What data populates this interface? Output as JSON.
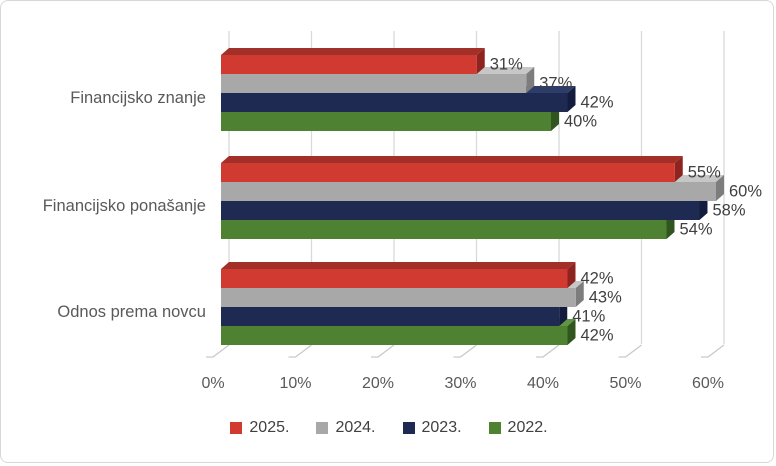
{
  "window": {
    "background": "#FFFFFF",
    "border_color": "#D8D8D8"
  },
  "chart_data": {
    "type": "bar",
    "orientation": "horizontal",
    "style": "3d-clustered",
    "title": "",
    "xlabel": "",
    "ylabel": "",
    "categories": [
      "Financijsko znanje",
      "Financijsko ponašanje",
      "Odnos prema novcu"
    ],
    "series": [
      {
        "name": "2025.",
        "color": "#D03A30",
        "color_top": "#A33028",
        "color_side": "#8E2420",
        "values": [
          31,
          55,
          42
        ]
      },
      {
        "name": "2024.",
        "color": "#A8A8A8",
        "color_top": "#C7C7C7",
        "color_side": "#7D7D7D",
        "values": [
          37,
          60,
          43
        ]
      },
      {
        "name": "2023.",
        "color": "#1F2A52",
        "color_top": "#2E3C69",
        "color_side": "#141C3D",
        "values": [
          42,
          58,
          41
        ]
      },
      {
        "name": "2022.",
        "color": "#4F8132",
        "color_top": "#609544",
        "color_side": "#31551E",
        "values": [
          40,
          54,
          42
        ]
      }
    ],
    "data_label_suffix": "%",
    "data_labels": [
      [
        "31%",
        "55%",
        "42%"
      ],
      [
        "37%",
        "60%",
        "43%"
      ],
      [
        "42%",
        "58%",
        "41%"
      ],
      [
        "40%",
        "54%",
        "42%"
      ]
    ],
    "axis": {
      "min": 0,
      "max": 60,
      "step": 10,
      "tick_labels": [
        "0%",
        "10%",
        "20%",
        "30%",
        "40%",
        "50%",
        "60%"
      ]
    },
    "legend": {
      "position": "bottom",
      "entries": [
        "2025.",
        "2024.",
        "2023.",
        "2022."
      ]
    },
    "grid": true,
    "grid_color": "#D9D9D9",
    "tick_color": "#C9C9C9",
    "axis_text_color": "#595959",
    "category_text_color": "#595959",
    "data_label_color": "#404040"
  }
}
